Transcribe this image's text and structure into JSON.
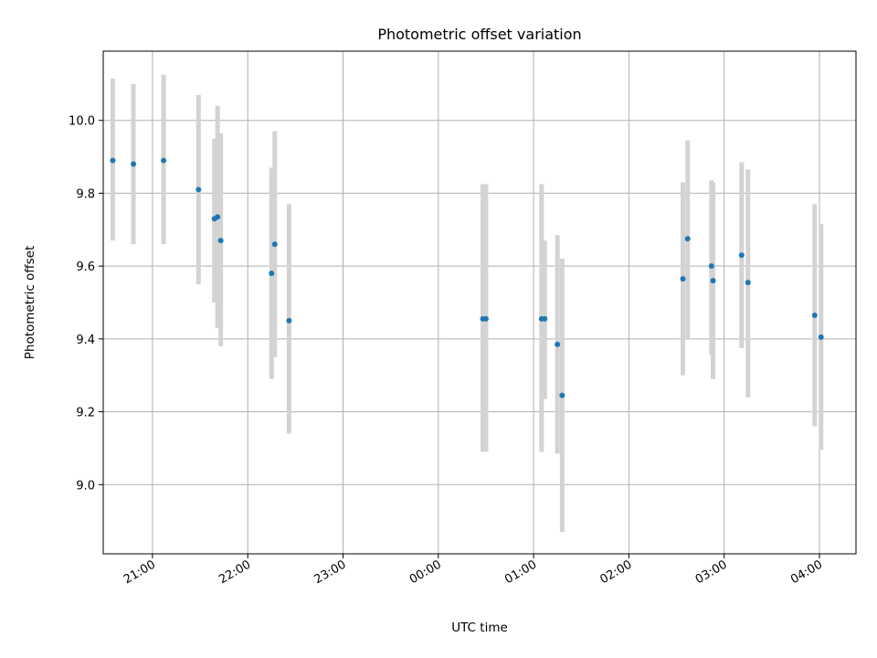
{
  "chart_data": {
    "type": "scatter",
    "title": "Photometric offset variation",
    "xlabel": "UTC time",
    "ylabel": "Photometric offset",
    "x_axis": "time",
    "xlim": [
      "20:29",
      "04:23"
    ],
    "ylim": [
      8.81,
      10.19
    ],
    "xticks": [
      "21:00",
      "22:00",
      "23:00",
      "00:00",
      "01:00",
      "02:00",
      "03:00",
      "04:00"
    ],
    "yticks": [
      9.0,
      9.2,
      9.4,
      9.6,
      9.8,
      10.0
    ],
    "grid": true,
    "point_color": "#1f77b4",
    "errorbar_color": "#d3d3d3",
    "points": [
      {
        "time": "20:35",
        "y": 9.89,
        "ylo": 9.67,
        "yhi": 10.115
      },
      {
        "time": "20:48",
        "y": 9.88,
        "ylo": 9.66,
        "yhi": 10.1
      },
      {
        "time": "21:07",
        "y": 9.89,
        "ylo": 9.66,
        "yhi": 10.125
      },
      {
        "time": "21:29",
        "y": 9.81,
        "ylo": 9.55,
        "yhi": 10.07
      },
      {
        "time": "21:39",
        "y": 9.73,
        "ylo": 9.5,
        "yhi": 9.95
      },
      {
        "time": "21:41",
        "y": 9.735,
        "ylo": 9.43,
        "yhi": 10.04
      },
      {
        "time": "21:43",
        "y": 9.67,
        "ylo": 9.38,
        "yhi": 9.965
      },
      {
        "time": "22:15",
        "y": 9.58,
        "ylo": 9.29,
        "yhi": 9.87
      },
      {
        "time": "22:17",
        "y": 9.66,
        "ylo": 9.35,
        "yhi": 9.97
      },
      {
        "time": "22:26",
        "y": 9.45,
        "ylo": 9.14,
        "yhi": 9.77
      },
      {
        "time": "00:28",
        "y": 9.455,
        "ylo": 9.09,
        "yhi": 9.825
      },
      {
        "time": "00:30",
        "y": 9.455,
        "ylo": 9.09,
        "yhi": 9.825
      },
      {
        "time": "01:05",
        "y": 9.455,
        "ylo": 9.09,
        "yhi": 9.825
      },
      {
        "time": "01:07",
        "y": 9.455,
        "ylo": 9.235,
        "yhi": 9.67
      },
      {
        "time": "01:15",
        "y": 9.385,
        "ylo": 9.085,
        "yhi": 9.685
      },
      {
        "time": "01:18",
        "y": 9.245,
        "ylo": 8.87,
        "yhi": 9.62
      },
      {
        "time": "02:34",
        "y": 9.565,
        "ylo": 9.3,
        "yhi": 9.83
      },
      {
        "time": "02:37",
        "y": 9.675,
        "ylo": 9.4,
        "yhi": 9.945
      },
      {
        "time": "02:52",
        "y": 9.6,
        "ylo": 9.355,
        "yhi": 9.835
      },
      {
        "time": "02:53",
        "y": 9.56,
        "ylo": 9.29,
        "yhi": 9.83
      },
      {
        "time": "03:11",
        "y": 9.63,
        "ylo": 9.375,
        "yhi": 9.885
      },
      {
        "time": "03:15",
        "y": 9.555,
        "ylo": 9.24,
        "yhi": 9.865
      },
      {
        "time": "03:57",
        "y": 9.465,
        "ylo": 9.16,
        "yhi": 9.77
      },
      {
        "time": "04:01",
        "y": 9.405,
        "ylo": 9.095,
        "yhi": 9.715
      }
    ]
  }
}
